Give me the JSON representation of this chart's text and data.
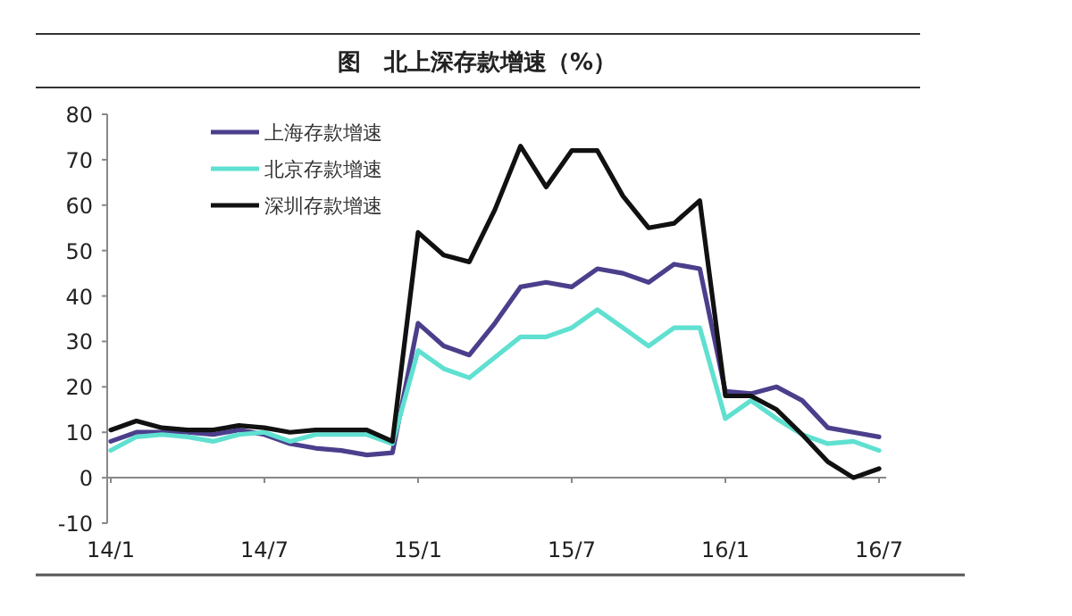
{
  "chart_data": {
    "type": "line",
    "title": "图　北上深存款增速（%）",
    "categories": [
      "14/1",
      null,
      null,
      null,
      null,
      null,
      "14/7",
      null,
      null,
      null,
      null,
      null,
      "15/1",
      null,
      null,
      null,
      null,
      null,
      "15/7",
      null,
      null,
      null,
      null,
      null,
      "16/1",
      null,
      null,
      null,
      null,
      null,
      "16/7"
    ],
    "series": [
      {
        "name": "上海存款增速",
        "color": "#4b3f8c",
        "values": [
          8,
          10,
          10,
          10,
          9.5,
          10.5,
          9.5,
          7.5,
          6.5,
          6,
          5,
          5.5,
          34,
          29,
          27,
          34,
          42,
          43,
          42,
          46,
          45,
          43,
          47,
          46,
          19,
          18.5,
          20,
          17,
          11,
          10,
          9
        ]
      },
      {
        "name": "北京存款增速",
        "color": "#5fe0d0",
        "values": [
          6,
          9,
          9.5,
          9,
          8,
          9.5,
          10,
          8,
          9.5,
          9.5,
          9.5,
          7.5,
          28,
          24,
          22,
          26.5,
          31,
          31,
          33,
          37,
          33,
          29,
          33,
          33,
          13,
          17,
          13,
          9.5,
          7.5,
          8,
          6
        ]
      },
      {
        "name": "深圳存款增速",
        "color": "#111111",
        "values": [
          10.5,
          12.5,
          11,
          10.5,
          10.5,
          11.5,
          11,
          10,
          10.5,
          10.5,
          10.5,
          8,
          54,
          49,
          47.5,
          59,
          73,
          64,
          72,
          72,
          62,
          55,
          56,
          61,
          18,
          18,
          15,
          9.5,
          3.5,
          0,
          2
        ]
      }
    ],
    "ylim": [
      -10,
      80
    ],
    "yticks": [
      -10,
      0,
      10,
      20,
      30,
      40,
      50,
      60,
      70,
      80
    ],
    "legend": "top left",
    "marker": "none",
    "line_style": "solid"
  }
}
